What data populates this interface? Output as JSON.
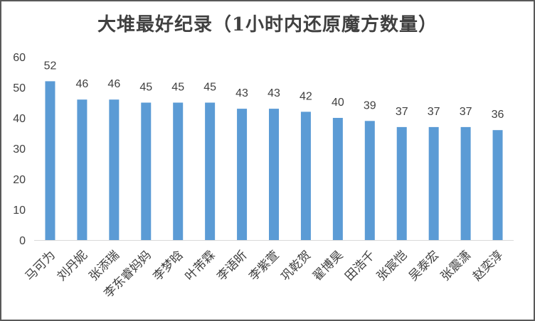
{
  "chart_data": {
    "type": "bar",
    "title": "大堆最好纪录（1小时内还原魔方数量）",
    "categories": [
      "马可为",
      "刘丹妮",
      "张添瑞",
      "李东睿妈妈",
      "李梦晗",
      "叶芾霖",
      "李语昕",
      "李紫萱",
      "巩乾贺",
      "翟博昊",
      "田浩千",
      "张宸恺",
      "吴泰宏",
      "张震潇",
      "赵奕淳"
    ],
    "values": [
      52,
      46,
      46,
      45,
      45,
      45,
      43,
      43,
      42,
      40,
      39,
      37,
      37,
      37,
      36
    ],
    "ylim": [
      0,
      60
    ],
    "yticks": [
      0,
      10,
      20,
      30,
      40,
      50,
      60
    ],
    "xlabel": "",
    "ylabel": "",
    "grid": false,
    "bar_color": "#5b9bd5",
    "data_labels": true
  }
}
